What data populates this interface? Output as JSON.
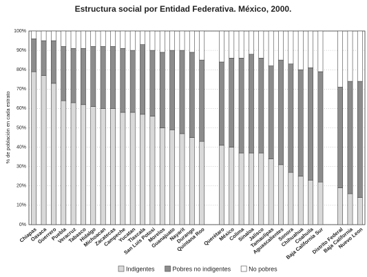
{
  "chart_data": {
    "type": "stacked_bar",
    "title": "Estructura social por Entidad Federativa. México, 2000.",
    "y_label": "% de población en cada estrato",
    "categories": [
      "Chiapas",
      "Oaxaca",
      "Guerrero",
      "Puebla",
      "Veracruz",
      "Tabasco",
      "Hidalgo",
      "Michoacan",
      "Zacatecas",
      "Campeche",
      "Yucatan",
      "Tlaxcala",
      "San Luis Potosi",
      "Morelos",
      "Guanajuato",
      "Nayarit",
      "Durango",
      "Quintana Roo",
      null,
      "Querétaro",
      "México",
      "Colima",
      "Sinaloa",
      "Jalisco",
      "Tamaulipas",
      "Aguascalientes",
      "Sonora",
      "Chihuahua",
      "Coahuila",
      "Baja California Sur",
      null,
      "Distrito Federal",
      "Baja California",
      "Nuevo Leon"
    ],
    "series": [
      {
        "name": "Indigentes",
        "color": "#d9d9d9",
        "values": [
          79,
          77,
          73,
          64,
          63,
          62,
          61,
          60,
          60,
          58,
          58,
          57,
          56,
          50,
          49,
          47,
          45,
          43,
          null,
          41,
          40,
          37,
          37,
          37,
          34,
          31,
          27,
          25,
          23,
          22,
          null,
          19,
          16,
          14
        ]
      },
      {
        "name": "Pobres no indigentes",
        "color": "#8c8c8c",
        "values": [
          17,
          18,
          22,
          28,
          28,
          29,
          31,
          32,
          32,
          33,
          32,
          36,
          34,
          39,
          41,
          43,
          44,
          42,
          null,
          43,
          46,
          49,
          51,
          49,
          48,
          54,
          56,
          55,
          58,
          57,
          null,
          52,
          58,
          60
        ]
      },
      {
        "name": "No pobres",
        "color": "#ffffff",
        "values": [
          4,
          5,
          5,
          8,
          9,
          9,
          8,
          8,
          8,
          9,
          10,
          7,
          10,
          11,
          10,
          10,
          11,
          15,
          null,
          16,
          14,
          14,
          12,
          14,
          18,
          15,
          17,
          20,
          19,
          21,
          null,
          29,
          26,
          26
        ]
      }
    ],
    "ylim": [
      0,
      100
    ],
    "yticks": [
      {
        "value": 0,
        "label": "0%"
      },
      {
        "value": 10,
        "label": "10%"
      },
      {
        "value": 20,
        "label": "20%"
      },
      {
        "value": 30,
        "label": "30%"
      },
      {
        "value": 40,
        "label": "40%"
      },
      {
        "value": 50,
        "label": "50%"
      },
      {
        "value": 60,
        "label": "60%"
      },
      {
        "value": 70,
        "label": "70%"
      },
      {
        "value": 80,
        "label": "80%"
      },
      {
        "value": 90,
        "label": "90%"
      },
      {
        "value": 100,
        "label": "100%"
      }
    ],
    "grid": true,
    "legend": "bottom"
  }
}
